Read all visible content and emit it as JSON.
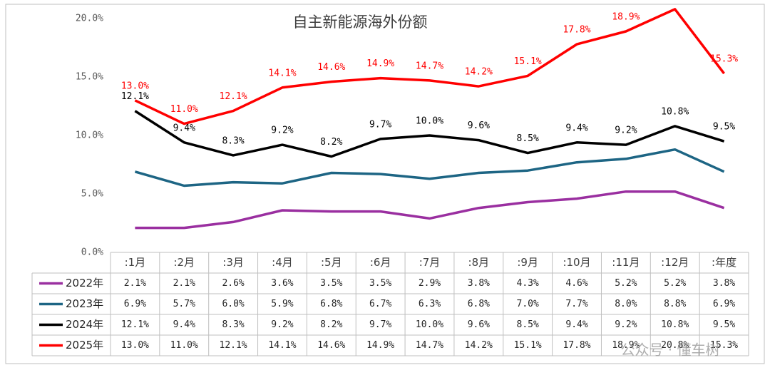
{
  "chart_data": {
    "type": "line",
    "title": "自主新能源海外份额",
    "categories": [
      ":1月",
      ":2月",
      ":3月",
      ":4月",
      ":5月",
      ":6月",
      ":7月",
      ":8月",
      ":9月",
      ":10月",
      ":11月",
      ":12月",
      ":年度"
    ],
    "series": [
      {
        "name": "2022年",
        "color": "#9a2fa0",
        "show_labels": false,
        "values": [
          2.1,
          2.1,
          2.6,
          3.6,
          3.5,
          3.5,
          2.9,
          3.8,
          4.3,
          4.6,
          5.2,
          5.2,
          3.8
        ],
        "value_labels": [
          "2.1%",
          "2.1%",
          "2.6%",
          "3.6%",
          "3.5%",
          "3.5%",
          "2.9%",
          "3.8%",
          "4.3%",
          "4.6%",
          "5.2%",
          "5.2%",
          "3.8%"
        ]
      },
      {
        "name": "2023年",
        "color": "#1d6584",
        "show_labels": false,
        "values": [
          6.9,
          5.7,
          6.0,
          5.9,
          6.8,
          6.7,
          6.3,
          6.8,
          7.0,
          7.7,
          8.0,
          8.8,
          6.9
        ],
        "value_labels": [
          "6.9%",
          "5.7%",
          "6.0%",
          "5.9%",
          "6.8%",
          "6.7%",
          "6.3%",
          "6.8%",
          "7.0%",
          "7.7%",
          "8.0%",
          "8.8%",
          "6.9%"
        ]
      },
      {
        "name": "2024年",
        "color": "#000000",
        "show_labels": true,
        "values": [
          12.1,
          9.4,
          8.3,
          9.2,
          8.2,
          9.7,
          10.0,
          9.6,
          8.5,
          9.4,
          9.2,
          10.8,
          9.5
        ],
        "value_labels": [
          "12.1%",
          "9.4%",
          "8.3%",
          "9.2%",
          "8.2%",
          "9.7%",
          "10.0%",
          "9.6%",
          "8.5%",
          "9.4%",
          "9.2%",
          "10.8%",
          "9.5%"
        ]
      },
      {
        "name": "2025年",
        "color": "#ff0000",
        "show_labels": true,
        "values": [
          13.0,
          11.0,
          12.1,
          14.1,
          14.6,
          14.9,
          14.7,
          14.2,
          15.1,
          17.8,
          18.9,
          20.8,
          15.3
        ],
        "value_labels": [
          "13.0%",
          "11.0%",
          "12.1%",
          "14.1%",
          "14.6%",
          "14.9%",
          "14.7%",
          "14.2%",
          "15.1%",
          "17.8%",
          "18.9%",
          "20.8%",
          "15.3%"
        ]
      }
    ],
    "ylim": [
      0,
      20
    ],
    "yticks": [
      {
        "value": 0,
        "label": "0.0%"
      },
      {
        "value": 5,
        "label": "5.0%"
      },
      {
        "value": 10,
        "label": "10.0%"
      },
      {
        "value": 15,
        "label": "15.0%"
      },
      {
        "value": 20,
        "label": "20.0%"
      }
    ],
    "grid": false,
    "watermark": "公众号 · 懂车树"
  }
}
